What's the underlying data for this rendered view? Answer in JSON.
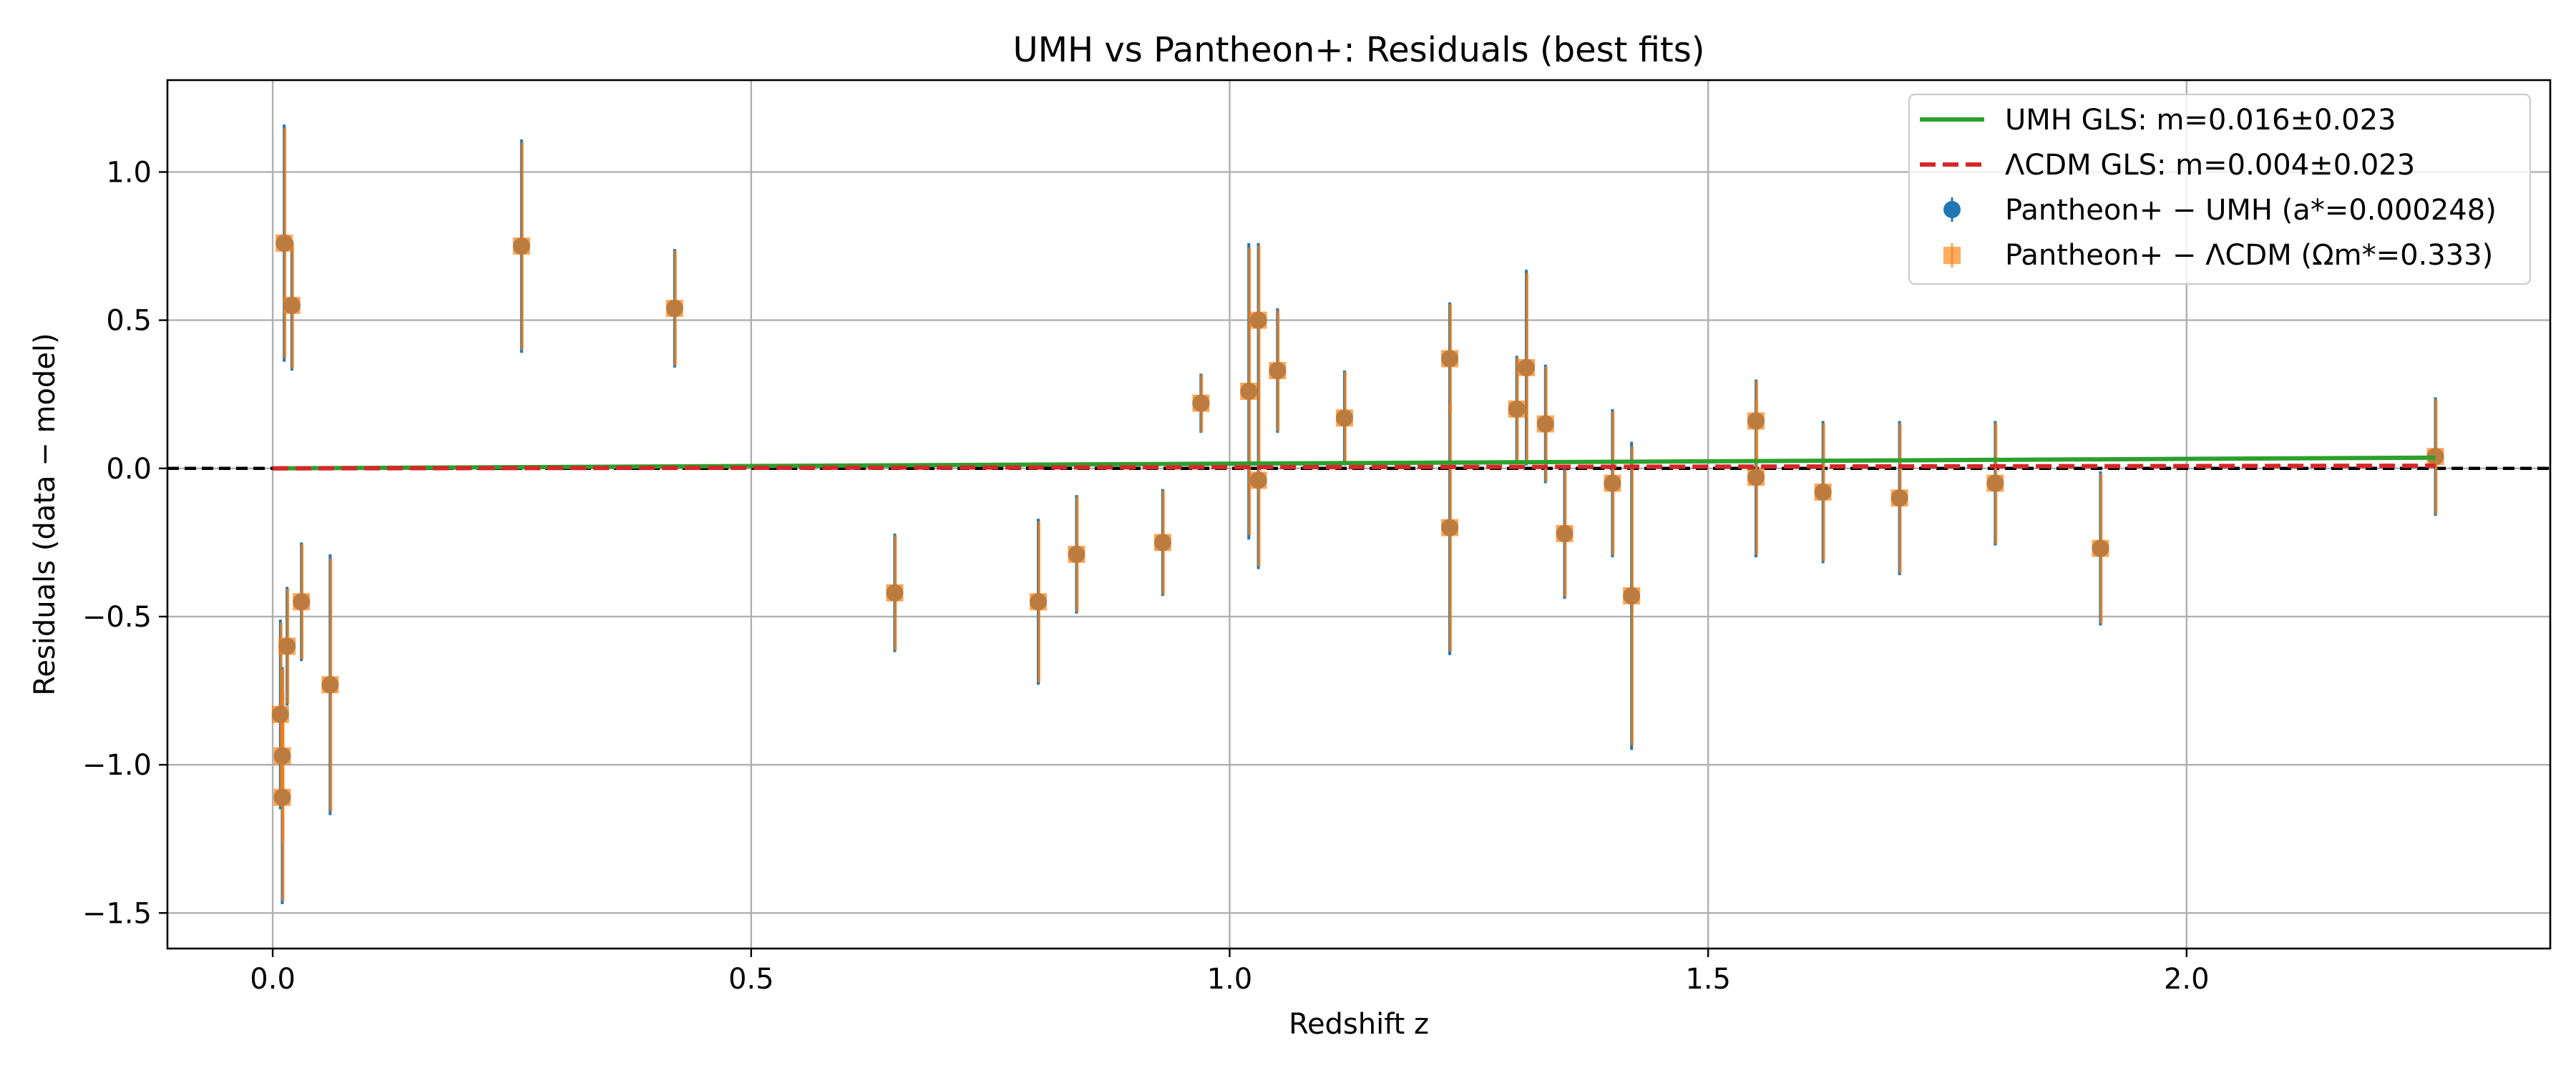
{
  "chart_data": {
    "type": "scatter",
    "title": "UMH vs Pantheon+: Residuals (best fits)",
    "xlabel": "Redshift z",
    "ylabel": "Residuals (data − model)",
    "xlim": [
      -0.11,
      2.38
    ],
    "ylim": [
      -1.62,
      1.31
    ],
    "xticks": [
      0.0,
      0.5,
      1.0,
      1.5,
      2.0
    ],
    "xtick_labels": [
      "0.0",
      "0.5",
      "1.0",
      "1.5",
      "2.0"
    ],
    "yticks": [
      -1.5,
      -1.0,
      -0.5,
      0.0,
      0.5,
      1.0
    ],
    "ytick_labels": [
      "−1.5",
      "−1.0",
      "−0.5",
      "0.0",
      "0.5",
      "1.0"
    ],
    "grid": true,
    "legend_position": "top-right",
    "reference_line": {
      "y": 0.0,
      "color": "#000000",
      "style": "dashed"
    },
    "fit_lines": [
      {
        "name": "UMH GLS: m=0.016±0.023",
        "slope": 0.016,
        "x": [
          0.0,
          2.26
        ],
        "color": "#2ca02c",
        "style": "solid"
      },
      {
        "name": "ΛCDM GLS: m=0.004±0.023",
        "slope": 0.004,
        "x": [
          0.0,
          2.26
        ],
        "color": "#d62728",
        "style": "dashed"
      }
    ],
    "series": [
      {
        "name": "Pantheon+ − UMH (a*=0.000248)",
        "marker": "circle",
        "color": "#1f77b4",
        "points": [
          [
            0.01,
            -1.11,
            0.36
          ],
          [
            0.01,
            -0.97,
            0.3
          ],
          [
            0.008,
            -0.83,
            0.32
          ],
          [
            0.012,
            0.76,
            0.4
          ],
          [
            0.015,
            -0.6,
            0.2
          ],
          [
            0.02,
            0.55,
            0.22
          ],
          [
            0.03,
            -0.45,
            0.2
          ],
          [
            0.06,
            -0.73,
            0.44
          ],
          [
            0.26,
            0.75,
            0.36
          ],
          [
            0.42,
            0.54,
            0.2
          ],
          [
            0.65,
            -0.42,
            0.2
          ],
          [
            0.8,
            -0.45,
            0.28
          ],
          [
            0.84,
            -0.29,
            0.2
          ],
          [
            0.93,
            -0.25,
            0.18
          ],
          [
            0.97,
            0.22,
            0.1
          ],
          [
            1.02,
            0.26,
            0.5
          ],
          [
            1.03,
            -0.04,
            0.3
          ],
          [
            1.03,
            0.5,
            0.26
          ],
          [
            1.05,
            0.33,
            0.21
          ],
          [
            1.12,
            0.17,
            0.16
          ],
          [
            1.23,
            0.37,
            0.19
          ],
          [
            1.23,
            -0.2,
            0.43
          ],
          [
            1.3,
            0.2,
            0.18
          ],
          [
            1.31,
            0.34,
            0.33
          ],
          [
            1.33,
            0.15,
            0.2
          ],
          [
            1.35,
            -0.22,
            0.22
          ],
          [
            1.4,
            -0.05,
            0.25
          ],
          [
            1.42,
            -0.43,
            0.52
          ],
          [
            1.55,
            -0.03,
            0.27
          ],
          [
            1.55,
            0.16,
            0.14
          ],
          [
            1.62,
            -0.08,
            0.24
          ],
          [
            1.7,
            -0.1,
            0.26
          ],
          [
            1.8,
            -0.05,
            0.21
          ],
          [
            1.91,
            -0.27,
            0.26
          ],
          [
            2.26,
            0.04,
            0.2
          ]
        ]
      },
      {
        "name": "Pantheon+ − ΛCDM (Ωm*=0.333)",
        "marker": "square",
        "color": "#ff7f0e",
        "points": [
          [
            0.01,
            -1.11,
            0.36
          ],
          [
            0.01,
            -0.97,
            0.3
          ],
          [
            0.008,
            -0.83,
            0.32
          ],
          [
            0.012,
            0.76,
            0.4
          ],
          [
            0.015,
            -0.6,
            0.2
          ],
          [
            0.02,
            0.55,
            0.22
          ],
          [
            0.03,
            -0.45,
            0.2
          ],
          [
            0.06,
            -0.73,
            0.44
          ],
          [
            0.26,
            0.75,
            0.36
          ],
          [
            0.42,
            0.54,
            0.2
          ],
          [
            0.65,
            -0.42,
            0.2
          ],
          [
            0.8,
            -0.45,
            0.28
          ],
          [
            0.84,
            -0.29,
            0.2
          ],
          [
            0.93,
            -0.25,
            0.18
          ],
          [
            0.97,
            0.22,
            0.1
          ],
          [
            1.02,
            0.26,
            0.5
          ],
          [
            1.03,
            -0.04,
            0.3
          ],
          [
            1.03,
            0.5,
            0.26
          ],
          [
            1.05,
            0.33,
            0.21
          ],
          [
            1.12,
            0.17,
            0.16
          ],
          [
            1.23,
            0.37,
            0.19
          ],
          [
            1.23,
            -0.2,
            0.43
          ],
          [
            1.3,
            0.2,
            0.18
          ],
          [
            1.31,
            0.34,
            0.33
          ],
          [
            1.33,
            0.15,
            0.2
          ],
          [
            1.35,
            -0.22,
            0.22
          ],
          [
            1.4,
            -0.05,
            0.25
          ],
          [
            1.42,
            -0.43,
            0.52
          ],
          [
            1.55,
            -0.03,
            0.27
          ],
          [
            1.55,
            0.16,
            0.14
          ],
          [
            1.62,
            -0.08,
            0.24
          ],
          [
            1.7,
            -0.1,
            0.26
          ],
          [
            1.8,
            -0.05,
            0.21
          ],
          [
            1.91,
            -0.27,
            0.26
          ],
          [
            2.26,
            0.04,
            0.2
          ]
        ]
      }
    ]
  }
}
